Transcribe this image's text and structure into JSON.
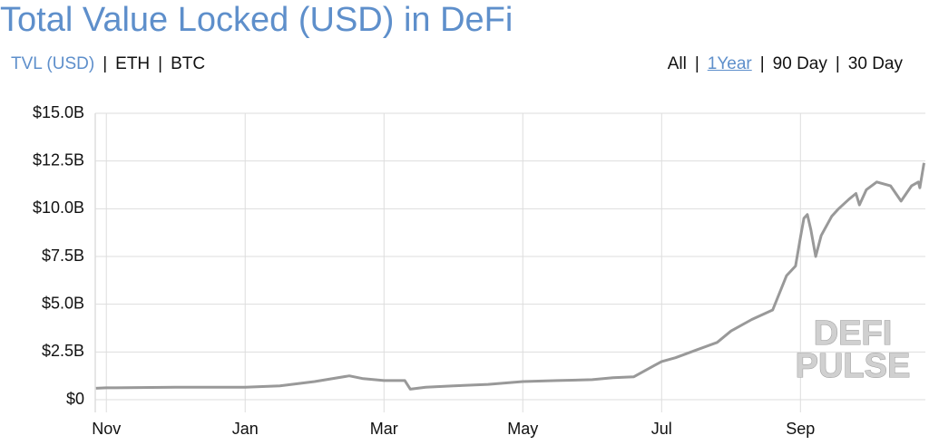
{
  "chart_data": {
    "type": "line",
    "title": "Total Value Locked (USD) in DeFi",
    "separator": "|",
    "tabs_left": [
      "TVL (USD)",
      "ETH",
      "BTC"
    ],
    "tabs_left_active": "TVL (USD)",
    "tabs_right": [
      "All",
      "1Year",
      "90 Day",
      "30 Day"
    ],
    "tabs_right_active": "1Year",
    "watermark": [
      "DEFI",
      "PULSE"
    ],
    "grid": true,
    "xlim": [
      -0.16,
      11.8
    ],
    "xticks": [
      {
        "value": 0,
        "label": "Nov"
      },
      {
        "value": 2,
        "label": "Jan"
      },
      {
        "value": 4,
        "label": "Mar"
      },
      {
        "value": 6,
        "label": "May"
      },
      {
        "value": 8,
        "label": "Jul"
      },
      {
        "value": 10,
        "label": "Sep"
      }
    ],
    "ylim": [
      0,
      15
    ],
    "yticks": [
      {
        "value": 0,
        "label": "$0"
      },
      {
        "value": 2.5,
        "label": "$2.5B"
      },
      {
        "value": 5,
        "label": "$5.0B"
      },
      {
        "value": 7.5,
        "label": "$7.5B"
      },
      {
        "value": 10,
        "label": "$10.0B"
      },
      {
        "value": 12.5,
        "label": "$12.5B"
      },
      {
        "value": 15,
        "label": "$15.0B"
      }
    ],
    "series": [
      {
        "color": "#999999",
        "x": [
          -0.15,
          0,
          1,
          2,
          2.5,
          3,
          3.5,
          3.7,
          4,
          4.3,
          4.38,
          4.6,
          5,
          5.5,
          6,
          6.5,
          7,
          7.3,
          7.6,
          7.9,
          8,
          8.2,
          8.5,
          8.8,
          9,
          9.3,
          9.6,
          9.8,
          9.93,
          10,
          10.05,
          10.1,
          10.15,
          10.22,
          10.3,
          10.45,
          10.55,
          10.7,
          10.8,
          10.85,
          10.95,
          11.1,
          11.3,
          11.45,
          11.6,
          11.7,
          11.72,
          11.78
        ],
        "values": [
          0.6,
          0.62,
          0.65,
          0.65,
          0.72,
          0.95,
          1.25,
          1.1,
          1.0,
          1.0,
          0.55,
          0.65,
          0.72,
          0.8,
          0.95,
          1.0,
          1.05,
          1.15,
          1.2,
          1.8,
          2.0,
          2.2,
          2.6,
          3.0,
          3.6,
          4.2,
          4.7,
          6.5,
          7.0,
          8.5,
          9.5,
          9.7,
          8.9,
          7.5,
          8.6,
          9.6,
          10.0,
          10.5,
          10.8,
          10.2,
          11.0,
          11.4,
          11.2,
          10.4,
          11.2,
          11.4,
          11.1,
          12.4
        ]
      }
    ]
  }
}
